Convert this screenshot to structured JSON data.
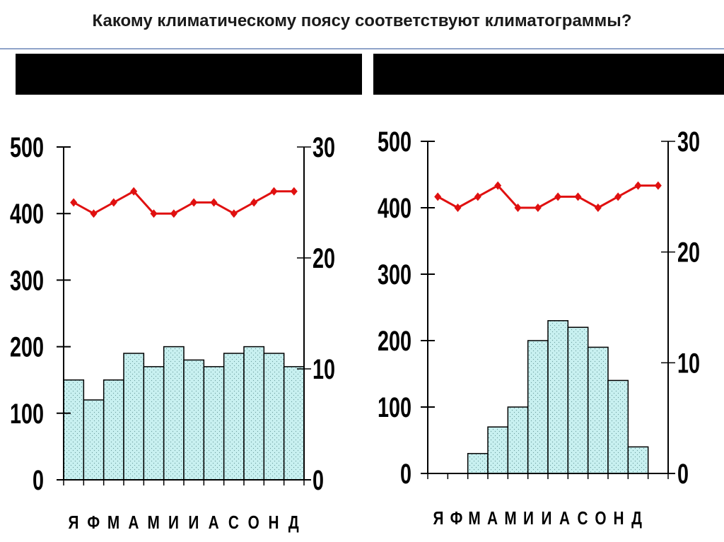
{
  "header": {
    "title": "Какому климатическому поясу соответствуют климатограммы?"
  },
  "colors": {
    "bar_fill": "#c8f0f0",
    "bar_stroke": "#000000",
    "line_color": "#e01010",
    "axis_color": "#000000"
  },
  "chart_data": [
    {
      "type": "bar",
      "title": "",
      "categories": [
        "Я",
        "Ф",
        "М",
        "А",
        "М",
        "И",
        "И",
        "А",
        "С",
        "О",
        "Н",
        "Д"
      ],
      "series": [
        {
          "values": [
            150,
            120,
            150,
            190,
            170,
            200,
            180,
            170,
            190,
            200,
            190,
            170
          ]
        },
        {
          "values": [
            25,
            24,
            25,
            26,
            24,
            24,
            25,
            25,
            24,
            25,
            26,
            26
          ]
        }
      ],
      "y_left_ticks": [
        "0",
        "100",
        "200",
        "300",
        "400",
        "500"
      ],
      "y_right_ticks": [
        "0",
        "10",
        "20",
        "30"
      ],
      "ylim_left": [
        0,
        500
      ],
      "ylim_right": [
        0,
        30
      ],
      "grid": false
    },
    {
      "type": "bar",
      "title": "",
      "categories": [
        "Я",
        "Ф",
        "М",
        "А",
        "М",
        "И",
        "И",
        "А",
        "С",
        "О",
        "Н",
        "Д"
      ],
      "series": [
        {
          "values": [
            0,
            0,
            30,
            70,
            100,
            200,
            230,
            220,
            190,
            140,
            40,
            0
          ]
        },
        {
          "values": [
            25,
            24,
            25,
            26,
            24,
            24,
            25,
            25,
            24,
            25,
            26,
            26
          ]
        }
      ],
      "y_left_ticks": [
        "0",
        "100",
        "200",
        "300",
        "400",
        "500"
      ],
      "y_right_ticks": [
        "0",
        "10",
        "20",
        "30"
      ],
      "ylim_left": [
        0,
        500
      ],
      "ylim_right": [
        0,
        30
      ],
      "grid": false
    }
  ]
}
